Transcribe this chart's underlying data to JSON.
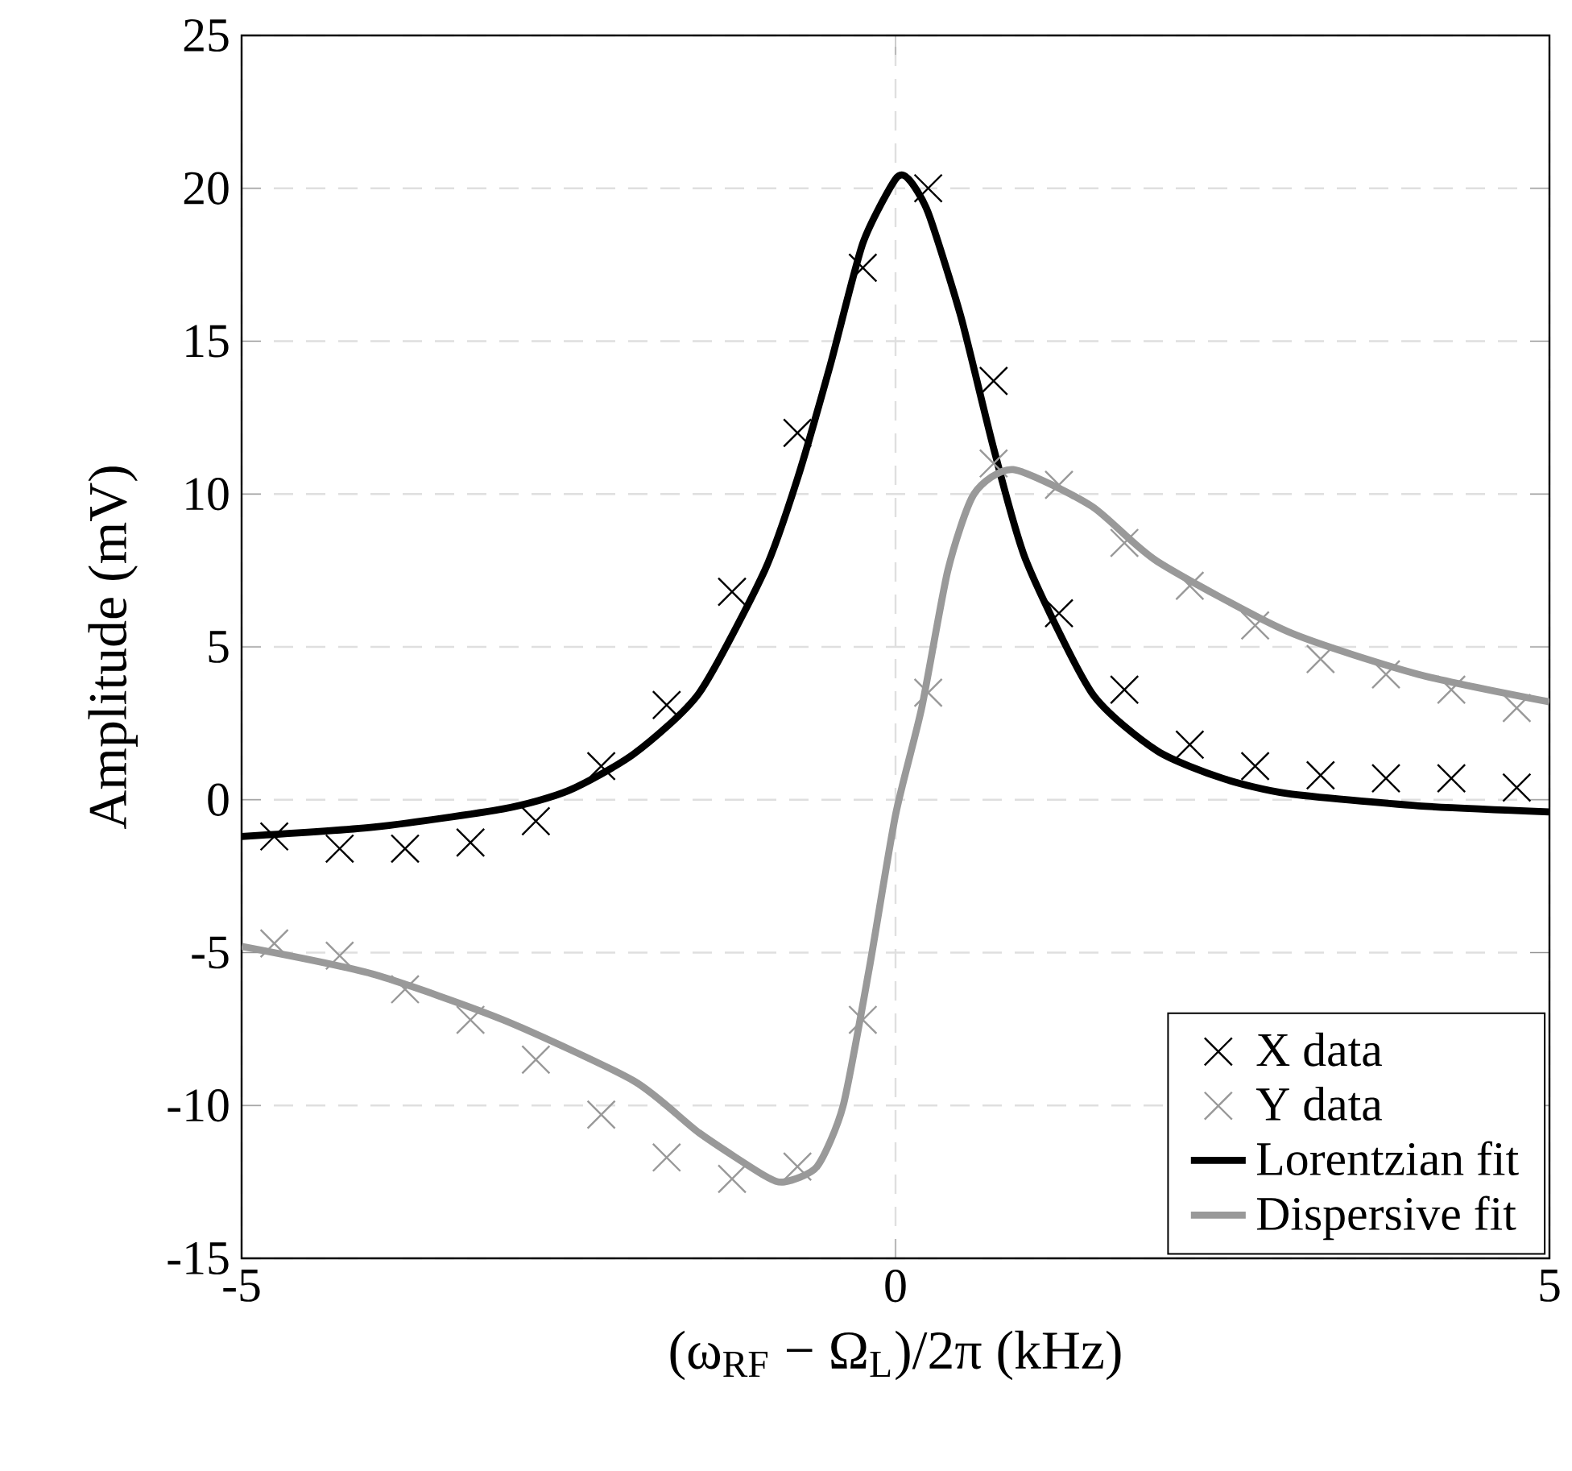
{
  "chart_data": {
    "type": "scatter",
    "xlabel": "(ω$_{RF}$ − Ω$_{L}$)/2π (kHz)",
    "ylabel": "Amplitude (mV)",
    "xlim": [
      -5,
      5
    ],
    "ylim": [
      -15,
      25
    ],
    "xticks": [
      -5,
      0,
      5
    ],
    "yticks": [
      -15,
      -10,
      -5,
      0,
      5,
      10,
      15,
      20,
      25
    ],
    "grid": true,
    "legend": "bottom right",
    "x": [
      -4.75,
      -4.25,
      -3.75,
      -3.25,
      -2.75,
      -2.25,
      -1.75,
      -1.25,
      -0.75,
      -0.25,
      0.25,
      0.75,
      1.25,
      1.75,
      2.25,
      2.75,
      3.25,
      3.75,
      4.25,
      4.75
    ],
    "series": [
      {
        "name": "X data",
        "marker": "cross",
        "color": "#000000",
        "values": [
          -1.2,
          -1.6,
          -1.6,
          -1.4,
          -0.7,
          1.1,
          3.1,
          6.8,
          12.0,
          17.4,
          20.0,
          13.7,
          6.1,
          3.6,
          1.8,
          1.1,
          0.8,
          0.7,
          0.7,
          0.4
        ]
      },
      {
        "name": "Y data",
        "marker": "cross",
        "color": "#999999",
        "values": [
          -4.7,
          -5.1,
          -6.2,
          -7.2,
          -8.5,
          -10.3,
          -11.7,
          -12.4,
          -12.0,
          -7.2,
          3.5,
          11.0,
          10.3,
          8.4,
          7.0,
          5.7,
          4.6,
          4.1,
          3.6,
          3.0
        ]
      },
      {
        "name": "Lorentzian fit",
        "type": "line",
        "marker": "none",
        "line_style": "solid",
        "color": "#000000",
        "x": [
          -5,
          -4,
          -3,
          -2.5,
          -2,
          -1.5,
          -1,
          -0.75,
          -0.5,
          -0.25,
          0,
          0.1,
          0.25,
          0.5,
          0.75,
          1,
          1.5,
          2,
          2.5,
          3,
          4,
          5
        ],
        "values": [
          -1.2,
          -0.9,
          -0.3,
          0.3,
          1.5,
          3.5,
          7.5,
          10.5,
          14.2,
          18.2,
          20.3,
          20.3,
          19.2,
          15.8,
          11.5,
          7.8,
          3.5,
          1.6,
          0.7,
          0.2,
          -0.2,
          -0.4
        ]
      },
      {
        "name": "Dispersive fit",
        "type": "line",
        "marker": "none",
        "line_style": "solid",
        "color": "#999999",
        "x": [
          -5,
          -4,
          -3,
          -2,
          -1.5,
          -1,
          -0.85,
          -0.6,
          -0.4,
          -0.2,
          0,
          0.2,
          0.4,
          0.6,
          0.9,
          1.5,
          2,
          3,
          4,
          5
        ],
        "values": [
          -4.8,
          -5.7,
          -7.2,
          -9.2,
          -10.9,
          -12.3,
          -12.5,
          -12.0,
          -10.0,
          -5.5,
          -0.5,
          3.0,
          7.5,
          10.0,
          10.8,
          9.6,
          7.8,
          5.5,
          4.1,
          3.2
        ]
      }
    ]
  }
}
